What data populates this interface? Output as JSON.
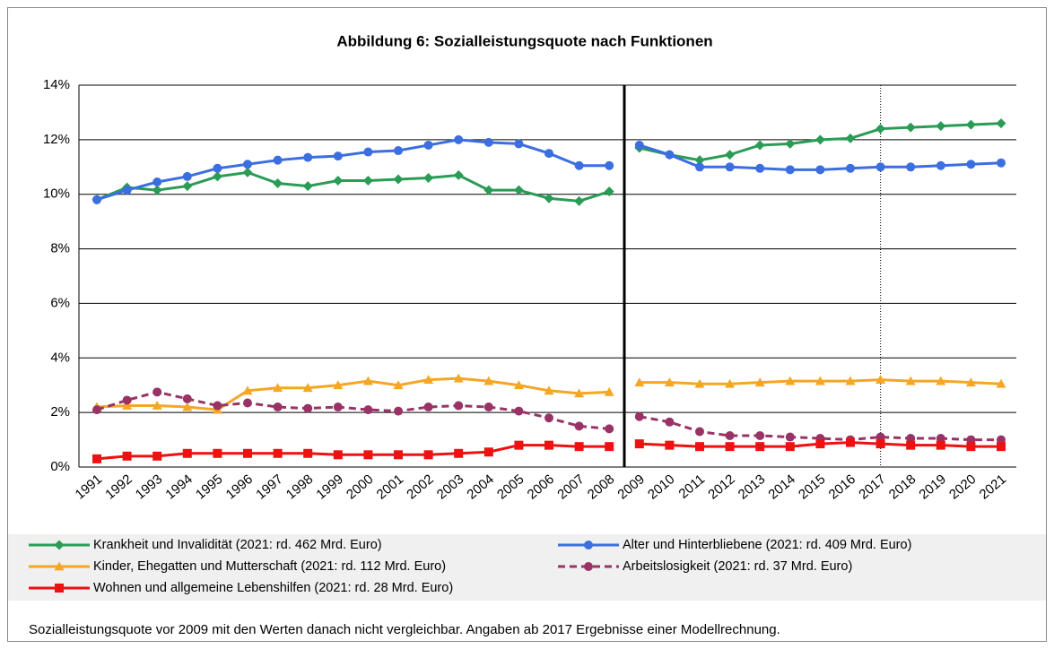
{
  "chart_data": {
    "type": "line",
    "title": "Abbildung 6: Sozialleistungsquote nach Funktionen",
    "categories": [
      "1991",
      "1992",
      "1993",
      "1994",
      "1995",
      "1996",
      "1997",
      "1998",
      "1999",
      "2000",
      "2001",
      "2002",
      "2003",
      "2004",
      "2005",
      "2006",
      "2007",
      "2008",
      "2009",
      "2010",
      "2011",
      "2012",
      "2013",
      "2014",
      "2015",
      "2016",
      "2017",
      "2018",
      "2019",
      "2020",
      "2021"
    ],
    "segment_break": "2009",
    "model_from": "2017",
    "series": [
      {
        "name": "Krankheit und Invalidität (2021: rd. 462 Mrd. Euro)",
        "color": "#2a9c55",
        "marker": "diamond",
        "values": [
          9.8,
          10.25,
          10.15,
          10.3,
          10.65,
          10.8,
          10.4,
          10.3,
          10.5,
          10.5,
          10.55,
          10.6,
          10.7,
          10.15,
          10.15,
          9.85,
          9.75,
          10.1,
          11.7,
          11.45,
          11.25,
          11.45,
          11.8,
          11.85,
          12.0,
          12.05,
          12.4,
          12.45,
          12.5,
          12.55,
          12.6
        ]
      },
      {
        "name": "Alter und Hinterbliebene (2021: rd. 409 Mrd. Euro)",
        "color": "#3b6ee0",
        "marker": "circle",
        "values": [
          9.8,
          10.15,
          10.45,
          10.65,
          10.95,
          11.1,
          11.25,
          11.35,
          11.4,
          11.55,
          11.6,
          11.8,
          12.0,
          11.9,
          11.85,
          11.5,
          11.05,
          11.05,
          11.8,
          11.45,
          11.0,
          11.0,
          10.95,
          10.9,
          10.9,
          10.95,
          11.0,
          11.0,
          11.05,
          11.1,
          11.15
        ]
      },
      {
        "name": "Kinder, Ehegatten und Mutterschaft (2021: rd. 112 Mrd. Euro)",
        "color": "#f5a623",
        "marker": "triangle",
        "values": [
          2.2,
          2.25,
          2.25,
          2.2,
          2.1,
          2.8,
          2.9,
          2.9,
          3.0,
          3.15,
          3.0,
          3.2,
          3.25,
          3.15,
          3.0,
          2.8,
          2.7,
          2.75,
          3.1,
          3.1,
          3.05,
          3.05,
          3.1,
          3.15,
          3.15,
          3.15,
          3.2,
          3.15,
          3.15,
          3.1,
          3.05
        ]
      },
      {
        "name": "Arbeitslosigkeit (2021: rd. 37 Mrd. Euro)",
        "color": "#993366",
        "marker": "circle",
        "dashed": true,
        "values": [
          2.1,
          2.45,
          2.75,
          2.5,
          2.25,
          2.35,
          2.2,
          2.15,
          2.2,
          2.1,
          2.05,
          2.2,
          2.25,
          2.2,
          2.05,
          1.8,
          1.5,
          1.4,
          1.85,
          1.65,
          1.3,
          1.15,
          1.15,
          1.1,
          1.05,
          1.0,
          1.1,
          1.05,
          1.05,
          1.0,
          1.0
        ]
      },
      {
        "name": "Wohnen und allgemeine Lebenshilfen (2021: rd. 28 Mrd. Euro)",
        "color": "#ee1111",
        "marker": "square",
        "values": [
          0.3,
          0.4,
          0.4,
          0.5,
          0.5,
          0.5,
          0.5,
          0.5,
          0.45,
          0.45,
          0.45,
          0.45,
          0.5,
          0.55,
          0.8,
          0.8,
          0.75,
          0.75,
          0.85,
          0.8,
          0.75,
          0.75,
          0.75,
          0.75,
          0.85,
          0.9,
          0.85,
          0.8,
          0.8,
          0.75,
          0.75
        ]
      }
    ],
    "ylim": [
      0,
      14
    ],
    "yticks": [
      {
        "value": 0,
        "label": "0%"
      },
      {
        "value": 2,
        "label": "2%"
      },
      {
        "value": 4,
        "label": "4%"
      },
      {
        "value": 6,
        "label": "6%"
      },
      {
        "value": 8,
        "label": "8%"
      },
      {
        "value": 10,
        "label": "10%"
      },
      {
        "value": 12,
        "label": "12%"
      },
      {
        "value": 14,
        "label": "14%"
      }
    ],
    "grid": true,
    "note": "Sozialleistungsquote  vor 2009 mit den Werten danach nicht vergleichbar.  Angaben ab 2017 Ergebnisse einer Modellrechnung."
  }
}
